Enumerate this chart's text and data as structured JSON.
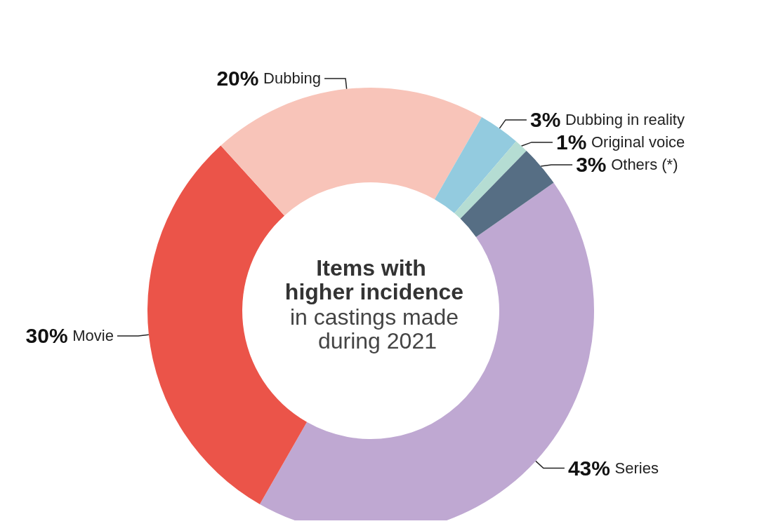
{
  "chart_data": {
    "type": "donut",
    "title": "Items with higher incidence",
    "subtitle": "in castings made during 2021",
    "categories": [
      "Series",
      "Movie",
      "Dubbing",
      "Dubbing in reality",
      "Original voice",
      "Others (*)"
    ],
    "values": [
      43,
      30,
      20,
      3,
      1,
      3
    ],
    "value_labels": [
      "43%",
      "30%",
      "20%",
      "3%",
      "1%",
      "3%"
    ],
    "colors": [
      "#bfa8d2",
      "#eb5449",
      "#f8c4b9",
      "#93cbdf",
      "#b5ddd3",
      "#566e84"
    ],
    "legend": false
  }
}
